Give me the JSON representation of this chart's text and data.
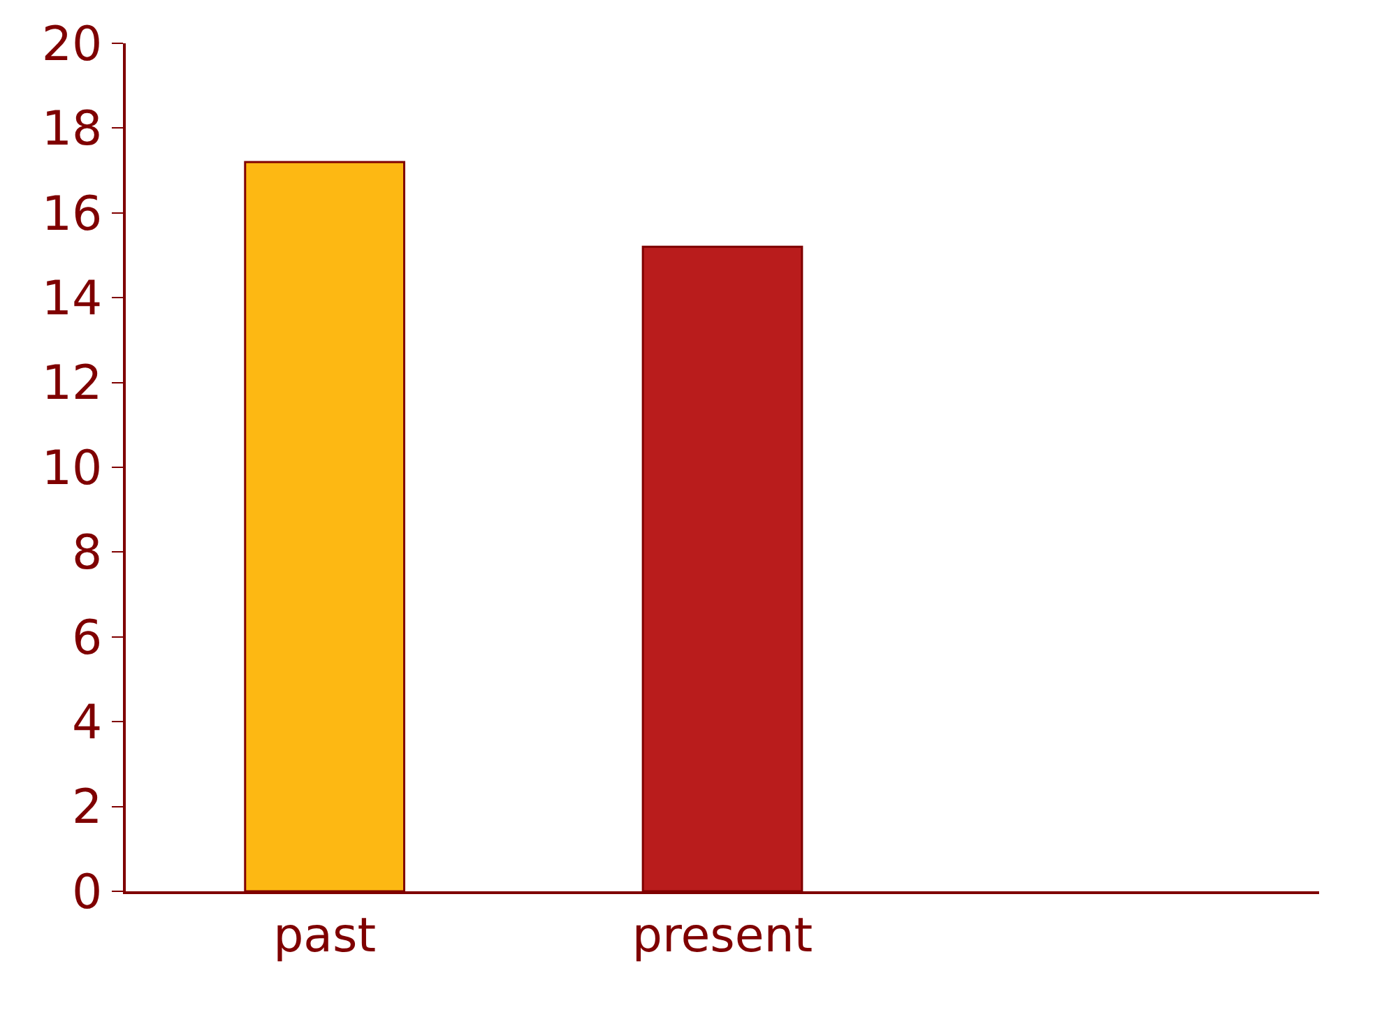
{
  "chart_data": {
    "type": "bar",
    "categories": [
      "past",
      "present",
      null
    ],
    "values": [
      17.2,
      15.2,
      null
    ],
    "colors": [
      "#fdb813",
      "#b91c1c",
      "#b91c1c"
    ],
    "ylim": [
      0,
      20
    ],
    "yticks": [
      0,
      2,
      4,
      6,
      8,
      10,
      12,
      14,
      16,
      18,
      20
    ]
  }
}
